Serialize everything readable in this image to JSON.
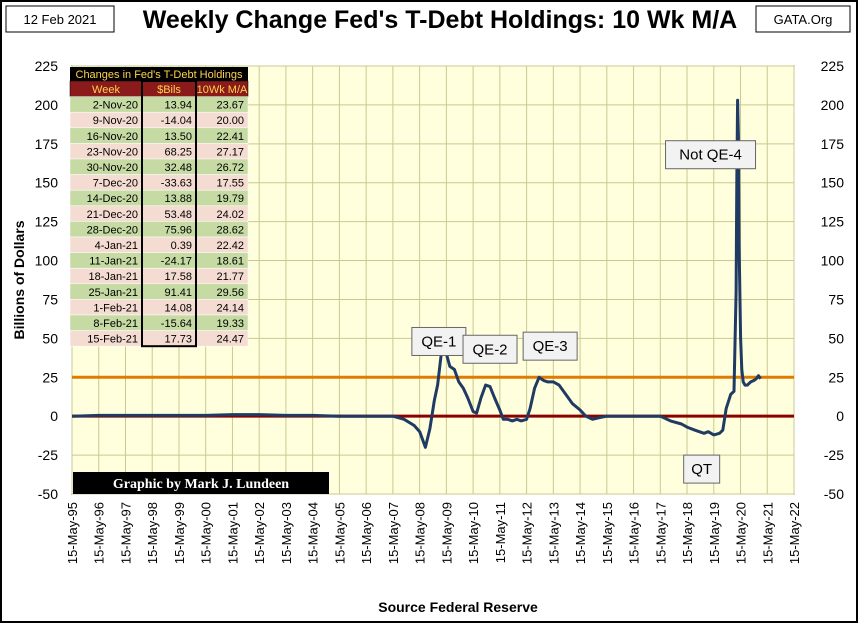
{
  "header": {
    "date": "12 Feb 2021",
    "title": "Weekly Change Fed's T-Debt Holdings: 10 Wk M/A",
    "source_tag": "GATA.Org"
  },
  "credit": "Graphic by Mark J. Lundeen",
  "colors": {
    "plot_bg": "#ffffdd",
    "series": "#1f3b63",
    "zero_line": "#8b0000",
    "ref_line": "#e07b00",
    "table_header_bg": "#000000",
    "table_header_text": "#ffd34d",
    "row_green": "#c5dba3",
    "row_pink": "#f5dcd2"
  },
  "table": {
    "title": "Changes in Fed's T-Debt Holdings",
    "columns": [
      "Week",
      "$Bils",
      "10Wk M/A"
    ],
    "rows": [
      [
        "2-Nov-20",
        "13.94",
        "23.67"
      ],
      [
        "9-Nov-20",
        "-14.04",
        "20.00"
      ],
      [
        "16-Nov-20",
        "13.50",
        "22.41"
      ],
      [
        "23-Nov-20",
        "68.25",
        "27.17"
      ],
      [
        "30-Nov-20",
        "32.48",
        "26.72"
      ],
      [
        "7-Dec-20",
        "-33.63",
        "17.55"
      ],
      [
        "14-Dec-20",
        "13.88",
        "19.79"
      ],
      [
        "21-Dec-20",
        "53.48",
        "24.02"
      ],
      [
        "28-Dec-20",
        "75.96",
        "28.62"
      ],
      [
        "4-Jan-21",
        "0.39",
        "22.42"
      ],
      [
        "11-Jan-21",
        "-24.17",
        "18.61"
      ],
      [
        "18-Jan-21",
        "17.58",
        "21.77"
      ],
      [
        "25-Jan-21",
        "91.41",
        "29.56"
      ],
      [
        "1-Feb-21",
        "14.08",
        "24.14"
      ],
      [
        "8-Feb-21",
        "-15.64",
        "19.33"
      ],
      [
        "15-Feb-21",
        "17.73",
        "24.47"
      ]
    ]
  },
  "chart_data": {
    "type": "line",
    "title": "Weekly Change Fed's T-Debt Holdings: 10 Wk M/A",
    "xlabel": "Source Federal Reserve",
    "ylabel": "Billions  of  Dollars",
    "ylim": [
      -50,
      225
    ],
    "yticks": [
      -50,
      -25,
      0,
      25,
      50,
      75,
      100,
      125,
      150,
      175,
      200,
      225
    ],
    "xlim": [
      "1995-05-15",
      "2022-05-15"
    ],
    "xticks": [
      "15-May-95",
      "15-May-96",
      "15-May-97",
      "15-May-98",
      "15-May-99",
      "15-May-00",
      "15-May-01",
      "15-May-02",
      "15-May-03",
      "15-May-04",
      "15-May-05",
      "15-May-06",
      "15-May-07",
      "15-May-08",
      "15-May-09",
      "15-May-10",
      "15-May-11",
      "15-May-12",
      "15-May-13",
      "15-May-14",
      "15-May-15",
      "15-May-16",
      "15-May-17",
      "15-May-18",
      "15-May-19",
      "15-May-20",
      "15-May-21",
      "15-May-22"
    ],
    "grid": true,
    "reference_lines": [
      {
        "y": 0,
        "color": "#8b0000"
      },
      {
        "y": 25,
        "color": "#e07b00"
      }
    ],
    "annotations": [
      {
        "text": "QE-1",
        "x": "2009-02-01",
        "y": 48
      },
      {
        "text": "QE-2",
        "x": "2011-01-01",
        "y": 43
      },
      {
        "text": "QE-3",
        "x": "2013-04-01",
        "y": 45
      },
      {
        "text": "Not QE-4",
        "x": "2019-04-01",
        "y": 168
      },
      {
        "text": "QT",
        "x": "2018-12-01",
        "y": -34
      }
    ],
    "series": [
      {
        "x": [
          "1995-05-15",
          "1996-05-15",
          "1997-05-15",
          "1998-05-15",
          "1999-05-15",
          "2000-05-15",
          "2001-05-15",
          "2002-05-15",
          "2003-05-15",
          "2004-05-15",
          "2005-05-15",
          "2006-05-15",
          "2007-05-15",
          "2007-10-15",
          "2008-03-01",
          "2008-05-15",
          "2008-08-01",
          "2008-10-01",
          "2008-12-01",
          "2009-01-15",
          "2009-03-01",
          "2009-04-01",
          "2009-05-15",
          "2009-07-01",
          "2009-09-01",
          "2009-11-01",
          "2010-01-01",
          "2010-03-01",
          "2010-05-15",
          "2010-07-01",
          "2010-09-01",
          "2010-11-01",
          "2011-01-01",
          "2011-03-01",
          "2011-05-15",
          "2011-07-01",
          "2011-09-01",
          "2011-11-01",
          "2012-01-01",
          "2012-03-01",
          "2012-05-15",
          "2012-07-01",
          "2012-09-01",
          "2012-11-01",
          "2013-01-01",
          "2013-03-01",
          "2013-05-15",
          "2013-08-01",
          "2013-11-01",
          "2014-02-01",
          "2014-05-15",
          "2014-08-01",
          "2014-11-01",
          "2015-02-01",
          "2015-05-15",
          "2016-05-15",
          "2017-05-15",
          "2017-10-01",
          "2018-03-01",
          "2018-05-15",
          "2018-09-01",
          "2019-01-01",
          "2019-03-01",
          "2019-05-15",
          "2019-08-01",
          "2019-09-15",
          "2019-11-01",
          "2020-01-01",
          "2020-02-15",
          "2020-03-15",
          "2020-03-25",
          "2020-04-05",
          "2020-04-15",
          "2020-04-25",
          "2020-05-15",
          "2020-06-01",
          "2020-06-20",
          "2020-07-15",
          "2020-08-15",
          "2020-10-01",
          "2020-11-15",
          "2020-12-15",
          "2021-01-15",
          "2021-02-12"
        ],
        "values": [
          0,
          0.5,
          0.5,
          0.5,
          0.5,
          0.5,
          1,
          1,
          0.5,
          0.5,
          0,
          0,
          0,
          -2,
          -6,
          -10,
          -20,
          -8,
          10,
          20,
          38,
          48,
          40,
          32,
          30,
          22,
          18,
          12,
          3,
          2,
          12,
          20,
          19,
          12,
          4,
          -2,
          -2,
          -3,
          -2,
          -3,
          -2,
          5,
          18,
          25,
          23,
          22,
          22,
          20,
          14,
          8,
          4,
          0,
          -2,
          -1,
          0,
          0,
          0,
          -3,
          -5,
          -7,
          -9,
          -11,
          -10,
          -12,
          -11,
          -9,
          5,
          14,
          16,
          80,
          150,
          203,
          180,
          110,
          50,
          30,
          22,
          20,
          20,
          22,
          23,
          24,
          26,
          24
        ]
      }
    ]
  }
}
